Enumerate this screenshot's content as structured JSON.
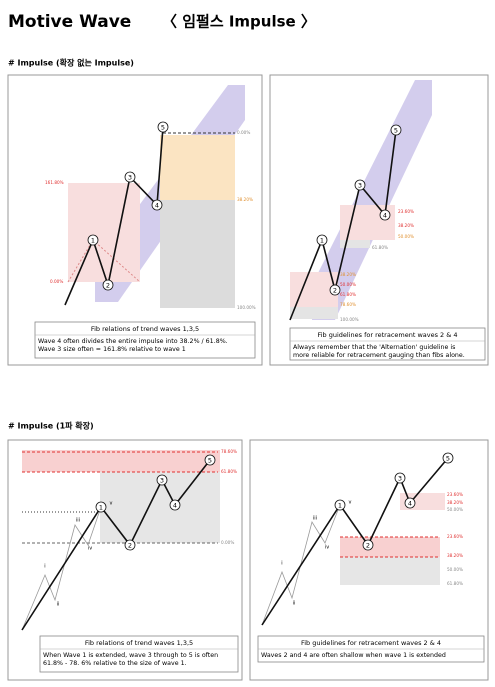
{
  "header": {
    "title": "Motive Wave",
    "subtitle": "〈 임펄스 Impulse 〉"
  },
  "sections": [
    {
      "heading": "# Impulse (확장 없는 Impulse)",
      "panels": [
        {
          "waves": [
            "1",
            "2",
            "3",
            "4",
            "5"
          ],
          "levels": [
            "161.80%",
            "0.00%",
            "0.00%",
            "38.20%",
            "100.00%"
          ],
          "caption": {
            "title": "Fib relations of trend waves 1,3,5",
            "lines": [
              "Wave 4 often divides the entire impulse into 38.2% / 61.8%.",
              "Wave 3 size often = 161.8% relative to wave 1"
            ]
          }
        },
        {
          "waves": [
            "1",
            "2",
            "3",
            "4",
            "5"
          ],
          "levels": [
            "23.60%",
            "38.20%",
            "50.00%",
            "61.80%",
            "38.20%",
            "50.00%",
            "61.80%",
            "78.60%",
            "100.00%"
          ],
          "caption": {
            "title": "Fib guidelines for retracement waves 2 & 4",
            "lines": [
              "Always remember that the 'Alternation' guideline is",
              "more reliable for retracement gauging than fibs alone."
            ]
          }
        }
      ]
    },
    {
      "heading": "# Impulse (1파 확장)",
      "panels": [
        {
          "subwaves": [
            "i",
            "ii",
            "iii",
            "iv",
            "v"
          ],
          "waves": [
            "1",
            "2",
            "3",
            "4",
            "5"
          ],
          "levels": [
            "78.60%",
            "61.80%",
            "0.00%"
          ],
          "caption": {
            "title": "Fib relations of trend waves 1,3,5",
            "lines": [
              "When Wave 1 is extended, wave 3 through to 5 is often",
              "61.8% - 78. 6% relative to the size of wave 1."
            ]
          }
        },
        {
          "subwaves": [
            "i",
            "ii",
            "iii",
            "iv",
            "v"
          ],
          "waves": [
            "1",
            "2",
            "3",
            "4",
            "5"
          ],
          "levels": [
            "23.60%",
            "38.20%",
            "50.00%",
            "23.60%",
            "38.20%",
            "50.00%",
            "61.80%"
          ],
          "caption": {
            "title": "Fib guidelines for retracement waves 2 & 4",
            "lines": [
              "Waves 2 and 4 are often shallow when wave 1 is extended"
            ]
          }
        }
      ]
    }
  ]
}
